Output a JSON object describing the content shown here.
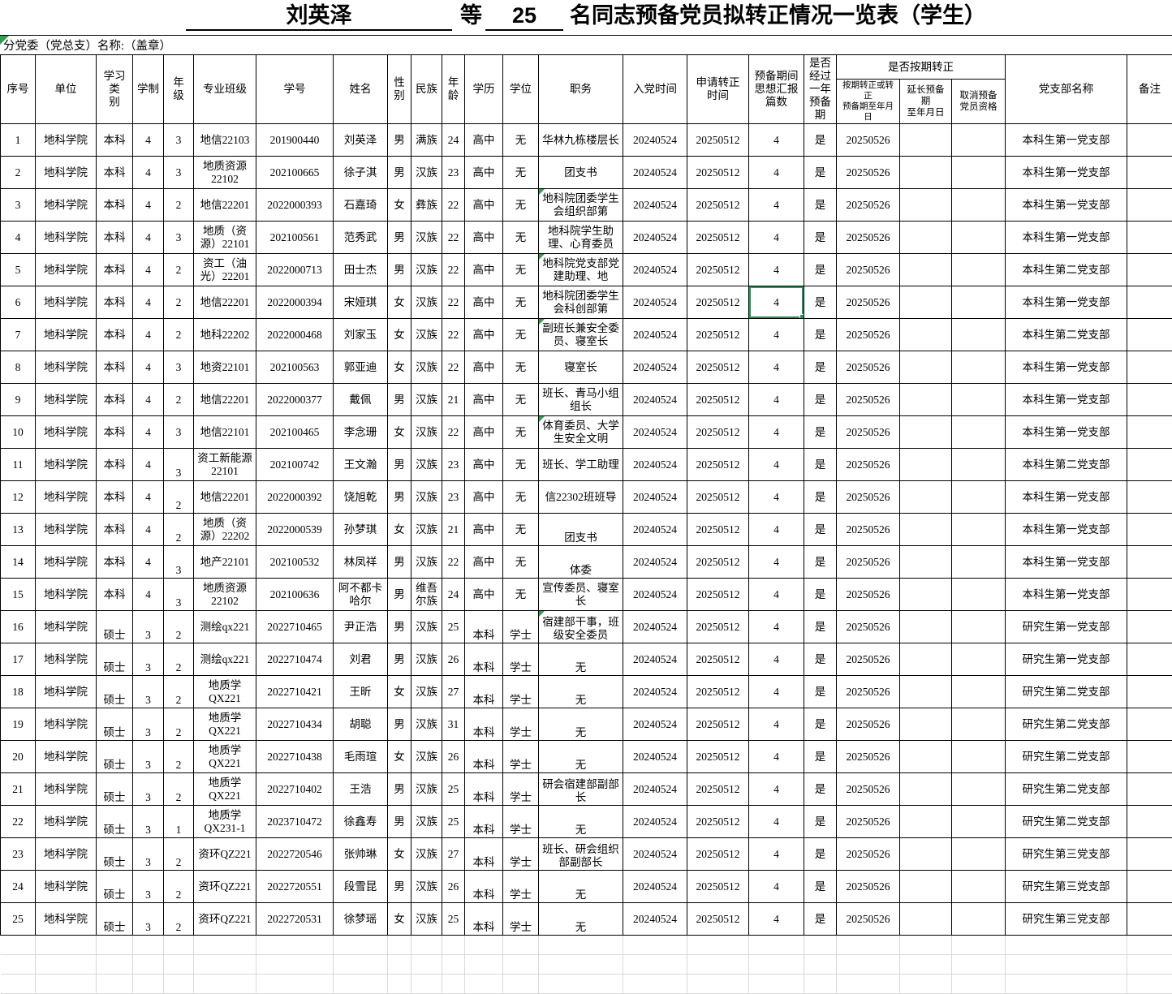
{
  "title": {
    "blank1": "刘英泽",
    "word_deng": "等",
    "blank2": "25",
    "rest": "名同志预备党员拟转正情况一览表（学生）"
  },
  "subtitle": "分党委（党总支）名称:（盖章）",
  "header": {
    "seq": "序号",
    "unit": "单位",
    "category": "学习类\n别",
    "years": "学制",
    "grade": "年\n级",
    "cls": "专业班级",
    "sid": "学号",
    "name": "姓名",
    "gender": "性\n别",
    "ethnic": "民族",
    "age": "年\n龄",
    "edu": "学历",
    "degree": "学位",
    "duty": "职务",
    "join": "入党时间",
    "apply": "申请转正\n时间",
    "reports": "预备期间\n思想汇报\n篇数",
    "one_year": "是否\n经过\n一年\n预备\n期",
    "on_time_group": "是否按期转正",
    "on_time": "按期转正或转正\n预备期至年月日",
    "extend": "延长预备\n期\n至年月日",
    "cancel": "取消预备\n党员资格",
    "branch": "党支部名称",
    "remark": "备注"
  },
  "rows": [
    {
      "seq": 1,
      "unit": "地科学院",
      "category": "本科",
      "years": "4",
      "grade": "3",
      "cls": "地信22103",
      "sid": "201900440",
      "name": "刘英泽",
      "gender": "男",
      "ethnic": "满族",
      "age": "24",
      "edu": "高中",
      "degree": "无",
      "duty": "华林九栋楼层长",
      "join": "20240524",
      "apply": "20250512",
      "reports": "4",
      "one_year": "是",
      "on_time": "20250526",
      "extend": "",
      "cancel": "",
      "branch": "本科生第一党支部",
      "remark": ""
    },
    {
      "seq": 2,
      "unit": "地科学院",
      "category": "本科",
      "years": "4",
      "grade": "3",
      "cls": "地质资源22102",
      "sid": "202100665",
      "name": "徐子淇",
      "gender": "男",
      "ethnic": "汉族",
      "age": "23",
      "edu": "高中",
      "degree": "无",
      "duty": "团支书",
      "join": "20240524",
      "apply": "20250512",
      "reports": "4",
      "one_year": "是",
      "on_time": "20250526",
      "extend": "",
      "cancel": "",
      "branch": "本科生第一党支部",
      "remark": ""
    },
    {
      "seq": 3,
      "unit": "地科学院",
      "category": "本科",
      "years": "4",
      "grade": "2",
      "cls": "地信22201",
      "sid": "2022000393",
      "name": "石嘉琦",
      "gender": "女",
      "ethnic": "彝族",
      "age": "22",
      "edu": "高中",
      "degree": "无",
      "duty": "地科院团委学生会组织部第",
      "join": "20240524",
      "apply": "20250512",
      "reports": "4",
      "one_year": "是",
      "on_time": "20250526",
      "extend": "",
      "cancel": "",
      "branch": "本科生第一党支部",
      "remark": ""
    },
    {
      "seq": 4,
      "unit": "地科学院",
      "category": "本科",
      "years": "4",
      "grade": "3",
      "cls": "地质（资源）22101",
      "sid": "202100561",
      "name": "范秀武",
      "gender": "男",
      "ethnic": "汉族",
      "age": "22",
      "edu": "高中",
      "degree": "无",
      "duty": "地科院学生助理、心育委员",
      "join": "20240524",
      "apply": "20250512",
      "reports": "4",
      "one_year": "是",
      "on_time": "20250526",
      "extend": "",
      "cancel": "",
      "branch": "本科生第一党支部",
      "remark": ""
    },
    {
      "seq": 5,
      "unit": "地科学院",
      "category": "本科",
      "years": "4",
      "grade": "2",
      "cls": "资工（油光）22201",
      "sid": "2022000713",
      "name": "田士杰",
      "gender": "男",
      "ethnic": "汉族",
      "age": "22",
      "edu": "高中",
      "degree": "无",
      "duty": "地科院党支部党建助理、地",
      "join": "20240524",
      "apply": "20250512",
      "reports": "4",
      "one_year": "是",
      "on_time": "20250526",
      "extend": "",
      "cancel": "",
      "branch": "本科生第二党支部",
      "remark": ""
    },
    {
      "seq": 6,
      "unit": "地科学院",
      "category": "本科",
      "years": "4",
      "grade": "2",
      "cls": "地信22201",
      "sid": "2022000394",
      "name": "宋娅琪",
      "gender": "女",
      "ethnic": "汉族",
      "age": "22",
      "edu": "高中",
      "degree": "无",
      "duty": "地科院团委学生会科创部第",
      "join": "20240524",
      "apply": "20250512",
      "reports": "4",
      "one_year": "是",
      "on_time": "20250526",
      "extend": "",
      "cancel": "",
      "branch": "本科生第一党支部",
      "remark": ""
    },
    {
      "seq": 7,
      "unit": "地科学院",
      "category": "本科",
      "years": "4",
      "grade": "2",
      "cls": "地科22202",
      "sid": "2022000468",
      "name": "刘家玉",
      "gender": "女",
      "ethnic": "汉族",
      "age": "22",
      "edu": "高中",
      "degree": "无",
      "duty": "副班长兼安全委员、寝室长",
      "join": "20240524",
      "apply": "20250512",
      "reports": "4",
      "one_year": "是",
      "on_time": "20250526",
      "extend": "",
      "cancel": "",
      "branch": "本科生第二党支部",
      "remark": ""
    },
    {
      "seq": 8,
      "unit": "地科学院",
      "category": "本科",
      "years": "4",
      "grade": "3",
      "cls": "地资22101",
      "sid": "202100563",
      "name": "郭亚迪",
      "gender": "女",
      "ethnic": "汉族",
      "age": "22",
      "edu": "高中",
      "degree": "无",
      "duty": "寝室长",
      "join": "20240524",
      "apply": "20250512",
      "reports": "4",
      "one_year": "是",
      "on_time": "20250526",
      "extend": "",
      "cancel": "",
      "branch": "本科生第一党支部",
      "remark": ""
    },
    {
      "seq": 9,
      "unit": "地科学院",
      "category": "本科",
      "years": "4",
      "grade": "2",
      "cls": "地信22201",
      "sid": "2022000377",
      "name": "戴佩",
      "gender": "男",
      "ethnic": "汉族",
      "age": "21",
      "edu": "高中",
      "degree": "无",
      "duty": "班长、青马小组组长",
      "join": "20240524",
      "apply": "20250512",
      "reports": "4",
      "one_year": "是",
      "on_time": "20250526",
      "extend": "",
      "cancel": "",
      "branch": "本科生第一党支部",
      "remark": ""
    },
    {
      "seq": 10,
      "unit": "地科学院",
      "category": "本科",
      "years": "4",
      "grade": "3",
      "cls": "地信22101",
      "sid": "202100465",
      "name": "李念珊",
      "gender": "女",
      "ethnic": "汉族",
      "age": "22",
      "edu": "高中",
      "degree": "无",
      "duty": "体育委员、大学生安全文明",
      "join": "20240524",
      "apply": "20250512",
      "reports": "4",
      "one_year": "是",
      "on_time": "20250526",
      "extend": "",
      "cancel": "",
      "branch": "本科生第一党支部",
      "remark": ""
    },
    {
      "seq": 11,
      "unit": "地科学院",
      "category": "本科",
      "years": "4",
      "grade": "3",
      "cls": "资工新能源22101",
      "sid": "202100742",
      "name": "王文瀚",
      "gender": "男",
      "ethnic": "汉族",
      "age": "23",
      "edu": "高中",
      "degree": "无",
      "duty": "班长、学工助理",
      "join": "20240524",
      "apply": "20250512",
      "reports": "4",
      "one_year": "是",
      "on_time": "20250526",
      "extend": "",
      "cancel": "",
      "branch": "本科生第二党支部",
      "remark": ""
    },
    {
      "seq": 12,
      "unit": "地科学院",
      "category": "本科",
      "years": "4",
      "grade": "2",
      "cls": "地信22201",
      "sid": "2022000392",
      "name": "饶旭乾",
      "gender": "男",
      "ethnic": "汉族",
      "age": "23",
      "edu": "高中",
      "degree": "无",
      "duty": "信22302班班导",
      "join": "20240524",
      "apply": "20250512",
      "reports": "4",
      "one_year": "是",
      "on_time": "20250526",
      "extend": "",
      "cancel": "",
      "branch": "本科生第一党支部",
      "remark": ""
    },
    {
      "seq": 13,
      "unit": "地科学院",
      "category": "本科",
      "years": "4",
      "grade": "2",
      "cls": "地质（资源）22202",
      "sid": "2022000539",
      "name": "孙梦琪",
      "gender": "女",
      "ethnic": "汉族",
      "age": "21",
      "edu": "高中",
      "degree": "无",
      "duty": "团支书",
      "join": "20240524",
      "apply": "20250512",
      "reports": "4",
      "one_year": "是",
      "on_time": "20250526",
      "extend": "",
      "cancel": "",
      "branch": "本科生第一党支部",
      "remark": ""
    },
    {
      "seq": 14,
      "unit": "地科学院",
      "category": "本科",
      "years": "4",
      "grade": "3",
      "cls": "地产22101",
      "sid": "202100532",
      "name": "林凤祥",
      "gender": "男",
      "ethnic": "汉族",
      "age": "22",
      "edu": "高中",
      "degree": "无",
      "duty": "体委",
      "join": "20240524",
      "apply": "20250512",
      "reports": "4",
      "one_year": "是",
      "on_time": "20250526",
      "extend": "",
      "cancel": "",
      "branch": "本科生第一党支部",
      "remark": ""
    },
    {
      "seq": 15,
      "unit": "地科学院",
      "category": "本科",
      "years": "4",
      "grade": "3",
      "cls": "地质资源22102",
      "sid": "202100636",
      "name": "阿不都卡哈尔",
      "gender": "男",
      "ethnic": "维吾尔族",
      "age": "24",
      "edu": "高中",
      "degree": "无",
      "duty": "宣传委员、寝室长",
      "join": "20240524",
      "apply": "20250512",
      "reports": "4",
      "one_year": "是",
      "on_time": "20250526",
      "extend": "",
      "cancel": "",
      "branch": "本科生第一党支部",
      "remark": ""
    },
    {
      "seq": 16,
      "unit": "地科学院",
      "category": "硕士",
      "years": "3",
      "grade": "2",
      "cls": "测绘qx221",
      "sid": "2022710465",
      "name": "尹正浩",
      "gender": "男",
      "ethnic": "汉族",
      "age": "25",
      "edu": "本科",
      "degree": "学士",
      "duty": "宿建部干事，班级安全委员",
      "join": "20240524",
      "apply": "20250512",
      "reports": "4",
      "one_year": "是",
      "on_time": "20250526",
      "extend": "",
      "cancel": "",
      "branch": "研究生第一党支部",
      "remark": ""
    },
    {
      "seq": 17,
      "unit": "地科学院",
      "category": "硕士",
      "years": "3",
      "grade": "2",
      "cls": "测绘qx221",
      "sid": "2022710474",
      "name": "刘君",
      "gender": "男",
      "ethnic": "汉族",
      "age": "26",
      "edu": "本科",
      "degree": "学士",
      "duty": "无",
      "join": "20240524",
      "apply": "20250512",
      "reports": "4",
      "one_year": "是",
      "on_time": "20250526",
      "extend": "",
      "cancel": "",
      "branch": "研究生第一党支部",
      "remark": ""
    },
    {
      "seq": 18,
      "unit": "地科学院",
      "category": "硕士",
      "years": "3",
      "grade": "2",
      "cls": "地质学QX221",
      "sid": "2022710421",
      "name": "王昕",
      "gender": "女",
      "ethnic": "汉族",
      "age": "27",
      "edu": "本科",
      "degree": "学士",
      "duty": "无",
      "join": "20240524",
      "apply": "20250512",
      "reports": "4",
      "one_year": "是",
      "on_time": "20250526",
      "extend": "",
      "cancel": "",
      "branch": "研究生第二党支部",
      "remark": ""
    },
    {
      "seq": 19,
      "unit": "地科学院",
      "category": "硕士",
      "years": "3",
      "grade": "2",
      "cls": "地质学QX221",
      "sid": "2022710434",
      "name": "胡聪",
      "gender": "男",
      "ethnic": "汉族",
      "age": "31",
      "edu": "本科",
      "degree": "学士",
      "duty": "无",
      "join": "20240524",
      "apply": "20250512",
      "reports": "4",
      "one_year": "是",
      "on_time": "20250526",
      "extend": "",
      "cancel": "",
      "branch": "研究生第二党支部",
      "remark": ""
    },
    {
      "seq": 20,
      "unit": "地科学院",
      "category": "硕士",
      "years": "3",
      "grade": "2",
      "cls": "地质学QX221",
      "sid": "2022710438",
      "name": "毛雨瑄",
      "gender": "女",
      "ethnic": "汉族",
      "age": "26",
      "edu": "本科",
      "degree": "学士",
      "duty": "无",
      "join": "20240524",
      "apply": "20250512",
      "reports": "4",
      "one_year": "是",
      "on_time": "20250526",
      "extend": "",
      "cancel": "",
      "branch": "研究生第二党支部",
      "remark": ""
    },
    {
      "seq": 21,
      "unit": "地科学院",
      "category": "硕士",
      "years": "3",
      "grade": "2",
      "cls": "地质学QX221",
      "sid": "2022710402",
      "name": "王浩",
      "gender": "男",
      "ethnic": "汉族",
      "age": "25",
      "edu": "本科",
      "degree": "学士",
      "duty": "研会宿建部副部长",
      "join": "20240524",
      "apply": "20250512",
      "reports": "4",
      "one_year": "是",
      "on_time": "20250526",
      "extend": "",
      "cancel": "",
      "branch": "研究生第二党支部",
      "remark": ""
    },
    {
      "seq": 22,
      "unit": "地科学院",
      "category": "硕士",
      "years": "3",
      "grade": "1",
      "cls": "地质学QX231-1",
      "sid": "2023710472",
      "name": "徐鑫寿",
      "gender": "男",
      "ethnic": "汉族",
      "age": "25",
      "edu": "本科",
      "degree": "学士",
      "duty": "无",
      "join": "20240524",
      "apply": "20250512",
      "reports": "4",
      "one_year": "是",
      "on_time": "20250526",
      "extend": "",
      "cancel": "",
      "branch": "研究生第二党支部",
      "remark": ""
    },
    {
      "seq": 23,
      "unit": "地科学院",
      "category": "硕士",
      "years": "3",
      "grade": "2",
      "cls": "资环QZ221",
      "sid": "2022720546",
      "name": "张帅琳",
      "gender": "女",
      "ethnic": "汉族",
      "age": "27",
      "edu": "本科",
      "degree": "学士",
      "duty": "班长、研会组织部副部长",
      "join": "20240524",
      "apply": "20250512",
      "reports": "4",
      "one_year": "是",
      "on_time": "20250526",
      "extend": "",
      "cancel": "",
      "branch": "研究生第三党支部",
      "remark": ""
    },
    {
      "seq": 24,
      "unit": "地科学院",
      "category": "硕士",
      "years": "3",
      "grade": "2",
      "cls": "资环QZ221",
      "sid": "2022720551",
      "name": "段雪昆",
      "gender": "男",
      "ethnic": "汉族",
      "age": "26",
      "edu": "本科",
      "degree": "学士",
      "duty": "无",
      "join": "20240524",
      "apply": "20250512",
      "reports": "4",
      "one_year": "是",
      "on_time": "20250526",
      "extend": "",
      "cancel": "",
      "branch": "研究生第三党支部",
      "remark": ""
    },
    {
      "seq": 25,
      "unit": "地科学院",
      "category": "硕士",
      "years": "3",
      "grade": "2",
      "cls": "资环QZ221",
      "sid": "2022720531",
      "name": "徐梦瑶",
      "gender": "女",
      "ethnic": "汉族",
      "age": "25",
      "edu": "本科",
      "degree": "学士",
      "duty": "无",
      "join": "20240524",
      "apply": "20250512",
      "reports": "4",
      "one_year": "是",
      "on_time": "20250526",
      "extend": "",
      "cancel": "",
      "branch": "研究生第三党支部",
      "remark": ""
    }
  ],
  "selection": {
    "row_seq": 6,
    "column": "reports"
  },
  "markers": {
    "duty_rows": [
      3,
      5,
      7,
      10,
      16
    ],
    "subtitle_cell": true
  },
  "colors": {
    "selection_green": "#1E9B5A",
    "marker_green": "#2F9E4F",
    "grid_black": "#000000",
    "ghost_grid": "#D9D9D9"
  }
}
